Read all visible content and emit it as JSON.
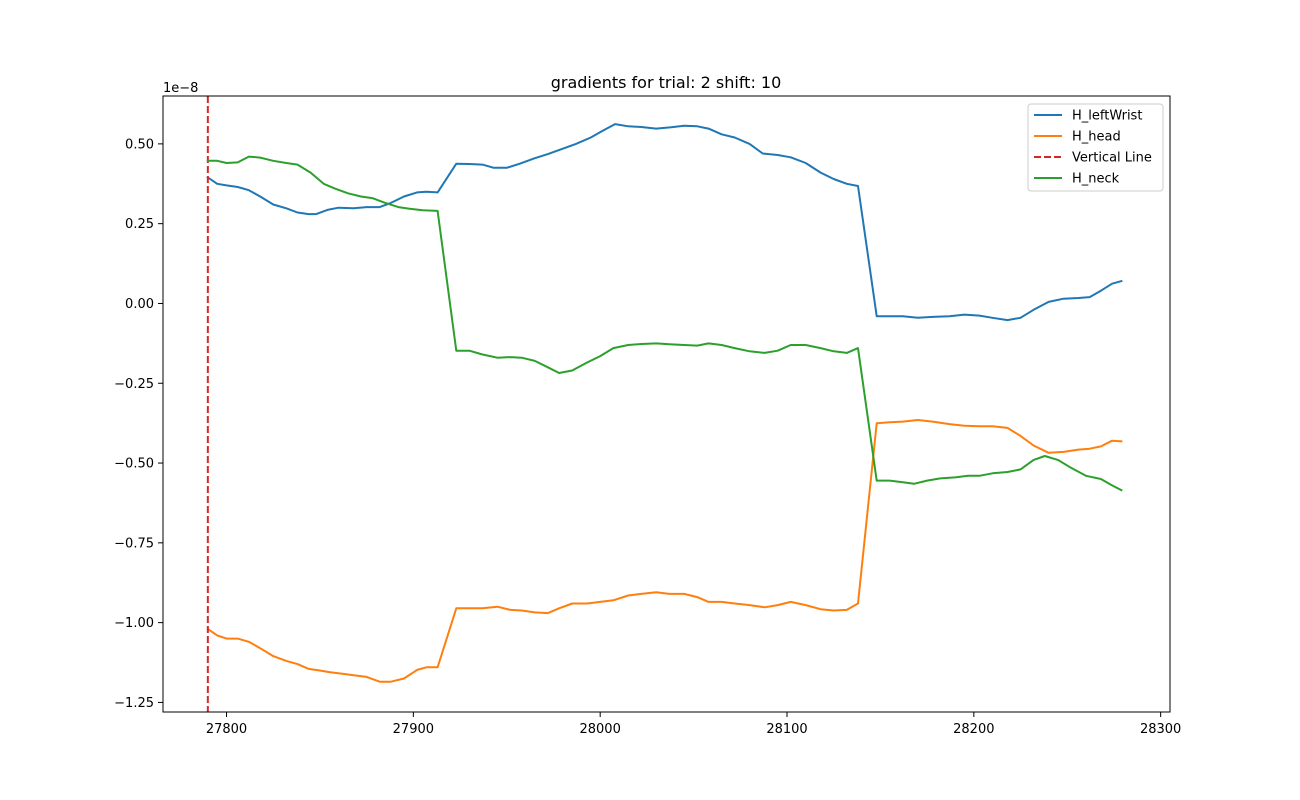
{
  "chart_data": {
    "type": "line",
    "title": "gradients for trial: 2 shift: 10",
    "xlabel": "",
    "ylabel": "",
    "y_offset_text": "1e−8",
    "xlim": [
      27766,
      28305
    ],
    "ylim": [
      -1.28,
      0.65
    ],
    "x_ticks": [
      27800,
      27900,
      28000,
      28100,
      28200,
      28300
    ],
    "y_ticks": [
      {
        "value": 0.5,
        "label": "0.50"
      },
      {
        "value": 0.25,
        "label": "0.25"
      },
      {
        "value": 0.0,
        "label": "0.00"
      },
      {
        "value": -0.25,
        "label": "−0.25"
      },
      {
        "value": -0.5,
        "label": "−0.50"
      },
      {
        "value": -0.75,
        "label": "−0.75"
      },
      {
        "value": -1.0,
        "label": "−1.00"
      },
      {
        "value": -1.25,
        "label": "−1.25"
      }
    ],
    "grid": false,
    "legend_position": "top-right",
    "series": [
      {
        "name": "H_leftWrist",
        "color": "#1f77b4",
        "style": "solid",
        "x": [
          27790,
          27795,
          27800,
          27806,
          27812,
          27818,
          27825,
          27832,
          27838,
          27844,
          27848,
          27854,
          27860,
          27868,
          27875,
          27882,
          27888,
          27895,
          27902,
          27907,
          27913,
          27923,
          27930,
          27937,
          27943,
          27950,
          27957,
          27965,
          27972,
          27980,
          27987,
          27995,
          28001,
          28008,
          28015,
          28022,
          28030,
          28038,
          28045,
          28052,
          28058,
          28065,
          28072,
          28080,
          28087,
          28095,
          28102,
          28110,
          28118,
          28125,
          28132,
          28138,
          28148,
          28155,
          28162,
          28170,
          28178,
          28187,
          28195,
          28203,
          28210,
          28218,
          28225,
          28232,
          28240,
          28248,
          28256,
          28262,
          28268,
          28274,
          28279
        ],
        "y": [
          0.395,
          0.375,
          0.37,
          0.365,
          0.355,
          0.335,
          0.31,
          0.298,
          0.285,
          0.28,
          0.28,
          0.293,
          0.3,
          0.298,
          0.302,
          0.302,
          0.315,
          0.335,
          0.348,
          0.35,
          0.348,
          0.438,
          0.437,
          0.435,
          0.425,
          0.425,
          0.438,
          0.455,
          0.468,
          0.485,
          0.5,
          0.52,
          0.54,
          0.562,
          0.555,
          0.553,
          0.548,
          0.552,
          0.557,
          0.555,
          0.548,
          0.53,
          0.52,
          0.5,
          0.47,
          0.465,
          0.458,
          0.44,
          0.41,
          0.39,
          0.375,
          0.368,
          -0.04,
          -0.04,
          -0.04,
          -0.045,
          -0.042,
          -0.04,
          -0.035,
          -0.038,
          -0.045,
          -0.052,
          -0.045,
          -0.02,
          0.005,
          0.015,
          0.017,
          0.02,
          0.04,
          0.062,
          0.07
        ]
      },
      {
        "name": "H_head",
        "color": "#ff7f0e",
        "style": "solid",
        "x": [
          27790,
          27795,
          27800,
          27806,
          27812,
          27818,
          27825,
          27832,
          27838,
          27844,
          27850,
          27855,
          27862,
          27868,
          27875,
          27882,
          27888,
          27895,
          27902,
          27907,
          27913,
          27923,
          27930,
          27937,
          27945,
          27952,
          27958,
          27965,
          27972,
          27978,
          27985,
          27993,
          28000,
          28007,
          28015,
          28022,
          28030,
          28037,
          28045,
          28052,
          28058,
          28065,
          28072,
          28080,
          28088,
          28095,
          28102,
          28110,
          28118,
          28125,
          28132,
          28138,
          28148,
          28155,
          28162,
          28170,
          28178,
          28187,
          28195,
          28203,
          28210,
          28218,
          28225,
          28232,
          28240,
          28248,
          28256,
          28262,
          28268,
          28274,
          28279
        ],
        "y": [
          -1.02,
          -1.04,
          -1.05,
          -1.05,
          -1.06,
          -1.08,
          -1.105,
          -1.12,
          -1.13,
          -1.145,
          -1.15,
          -1.155,
          -1.16,
          -1.165,
          -1.17,
          -1.185,
          -1.185,
          -1.175,
          -1.148,
          -1.14,
          -1.14,
          -0.955,
          -0.955,
          -0.955,
          -0.95,
          -0.96,
          -0.962,
          -0.968,
          -0.97,
          -0.955,
          -0.94,
          -0.94,
          -0.935,
          -0.93,
          -0.915,
          -0.91,
          -0.905,
          -0.91,
          -0.91,
          -0.92,
          -0.935,
          -0.935,
          -0.94,
          -0.945,
          -0.952,
          -0.945,
          -0.935,
          -0.945,
          -0.958,
          -0.962,
          -0.96,
          -0.94,
          -0.375,
          -0.372,
          -0.37,
          -0.365,
          -0.37,
          -0.378,
          -0.383,
          -0.385,
          -0.385,
          -0.39,
          -0.415,
          -0.445,
          -0.468,
          -0.465,
          -0.458,
          -0.455,
          -0.448,
          -0.43,
          -0.432
        ]
      },
      {
        "name": "Vertical Line",
        "color": "#d62728",
        "style": "dashed",
        "vertical_x": 27790
      },
      {
        "name": "H_neck",
        "color": "#2ca02c",
        "style": "solid",
        "x": [
          27790,
          27795,
          27800,
          27806,
          27812,
          27818,
          27825,
          27832,
          27838,
          27845,
          27852,
          27858,
          27865,
          27872,
          27878,
          27885,
          27892,
          27898,
          27905,
          27913,
          27923,
          27930,
          27937,
          27945,
          27952,
          27958,
          27965,
          27972,
          27978,
          27985,
          27993,
          28000,
          28007,
          28015,
          28022,
          28030,
          28037,
          28045,
          28052,
          28058,
          28065,
          28072,
          28080,
          28088,
          28095,
          28102,
          28110,
          28118,
          28125,
          28132,
          28138,
          28148,
          28155,
          28162,
          28168,
          28175,
          28182,
          28190,
          28197,
          28203,
          28210,
          28218,
          28225,
          28232,
          28238,
          28245,
          28252,
          28260,
          28268,
          28274,
          28279
        ],
        "y": [
          0.447,
          0.447,
          0.44,
          0.442,
          0.46,
          0.457,
          0.447,
          0.44,
          0.435,
          0.41,
          0.375,
          0.36,
          0.345,
          0.335,
          0.33,
          0.315,
          0.302,
          0.297,
          0.292,
          0.29,
          -0.148,
          -0.148,
          -0.16,
          -0.17,
          -0.168,
          -0.17,
          -0.18,
          -0.2,
          -0.218,
          -0.21,
          -0.185,
          -0.165,
          -0.14,
          -0.13,
          -0.127,
          -0.125,
          -0.128,
          -0.13,
          -0.132,
          -0.125,
          -0.13,
          -0.14,
          -0.15,
          -0.155,
          -0.148,
          -0.13,
          -0.13,
          -0.14,
          -0.15,
          -0.155,
          -0.14,
          -0.555,
          -0.555,
          -0.56,
          -0.565,
          -0.555,
          -0.548,
          -0.545,
          -0.54,
          -0.54,
          -0.532,
          -0.528,
          -0.52,
          -0.49,
          -0.478,
          -0.49,
          -0.515,
          -0.54,
          -0.55,
          -0.57,
          -0.585
        ]
      }
    ]
  }
}
